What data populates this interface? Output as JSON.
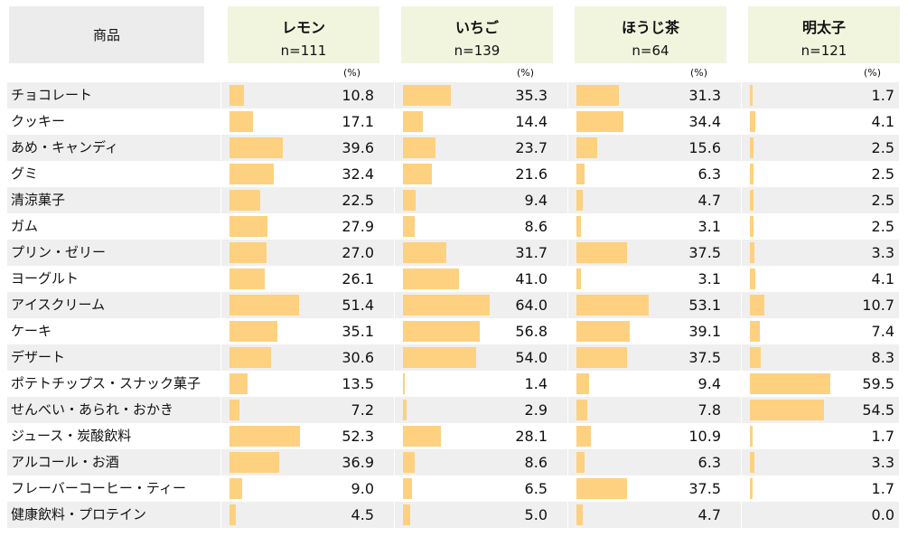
{
  "header": {
    "label": "商品",
    "unit": "(%)"
  },
  "chart_data": {
    "type": "bar",
    "xlim": [
      0,
      100
    ],
    "categories": [
      "チョコレート",
      "クッキー",
      "あめ・キャンディ",
      "グミ",
      "清涼菓子",
      "ガム",
      "プリン・ゼリー",
      "ヨーグルト",
      "アイスクリーム",
      "ケーキ",
      "デザート",
      "ポテトチップス・スナック菓子",
      "せんべい・あられ・おかき",
      "ジュース・炭酸飲料",
      "アルコール・お酒",
      "フレーバーコーヒー・ティー",
      "健康飲料・プロテイン"
    ],
    "series": [
      {
        "name": "レモン",
        "n": "n=111",
        "values": [
          "10.8",
          "17.1",
          "39.6",
          "32.4",
          "22.5",
          "27.9",
          "27.0",
          "26.1",
          "51.4",
          "35.1",
          "30.6",
          "13.5",
          "7.2",
          "52.3",
          "36.9",
          "9.0",
          "4.5"
        ]
      },
      {
        "name": "いちご",
        "n": "n=139",
        "values": [
          "35.3",
          "14.4",
          "23.7",
          "21.6",
          "9.4",
          "8.6",
          "31.7",
          "41.0",
          "64.0",
          "56.8",
          "54.0",
          "1.4",
          "2.9",
          "28.1",
          "8.6",
          "6.5",
          "5.0"
        ]
      },
      {
        "name": "ほうじ茶",
        "n": "n=64",
        "values": [
          "31.3",
          "34.4",
          "15.6",
          "6.3",
          "4.7",
          "3.1",
          "37.5",
          "3.1",
          "53.1",
          "39.1",
          "37.5",
          "9.4",
          "7.8",
          "10.9",
          "6.3",
          "37.5",
          "4.7"
        ]
      },
      {
        "name": "明太子",
        "n": "n=121",
        "values": [
          "1.7",
          "4.1",
          "2.5",
          "2.5",
          "2.5",
          "2.5",
          "3.3",
          "4.1",
          "10.7",
          "7.4",
          "8.3",
          "59.5",
          "54.5",
          "1.7",
          "3.3",
          "1.7",
          "0.0"
        ]
      }
    ],
    "colors": {
      "bar": "#fdd17f",
      "header_fill": "#f1f5de",
      "label_fill": "#ececec",
      "row_shade": "#efefef"
    }
  }
}
